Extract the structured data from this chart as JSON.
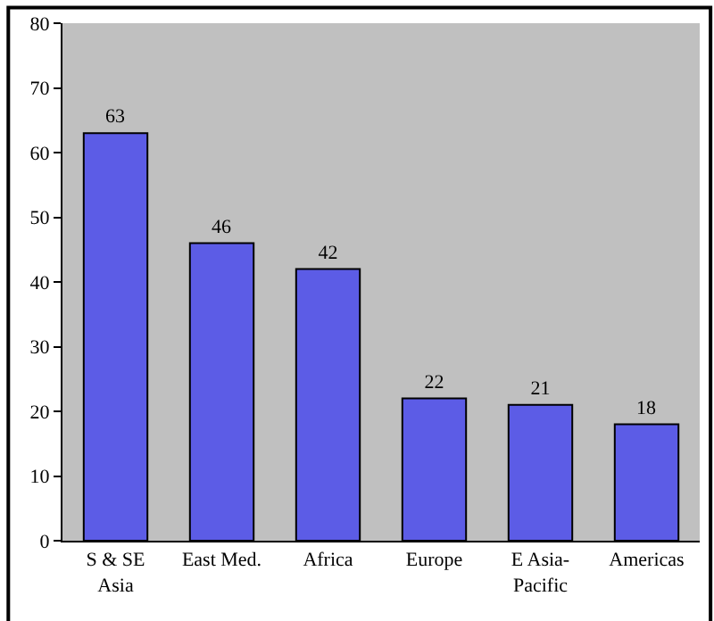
{
  "chart_data": {
    "type": "bar",
    "categories": [
      "S & SE\nAsia",
      "East Med.",
      "Africa",
      "Europe",
      "E Asia-\nPacific",
      "Americas"
    ],
    "values": [
      63,
      46,
      42,
      22,
      21,
      18
    ],
    "color": "#5c5ce6",
    "ylim": [
      0,
      80
    ],
    "yticks": [
      0,
      10,
      20,
      30,
      40,
      50,
      60,
      70,
      80
    ],
    "grid": false,
    "legend": false,
    "data_labels": true
  }
}
